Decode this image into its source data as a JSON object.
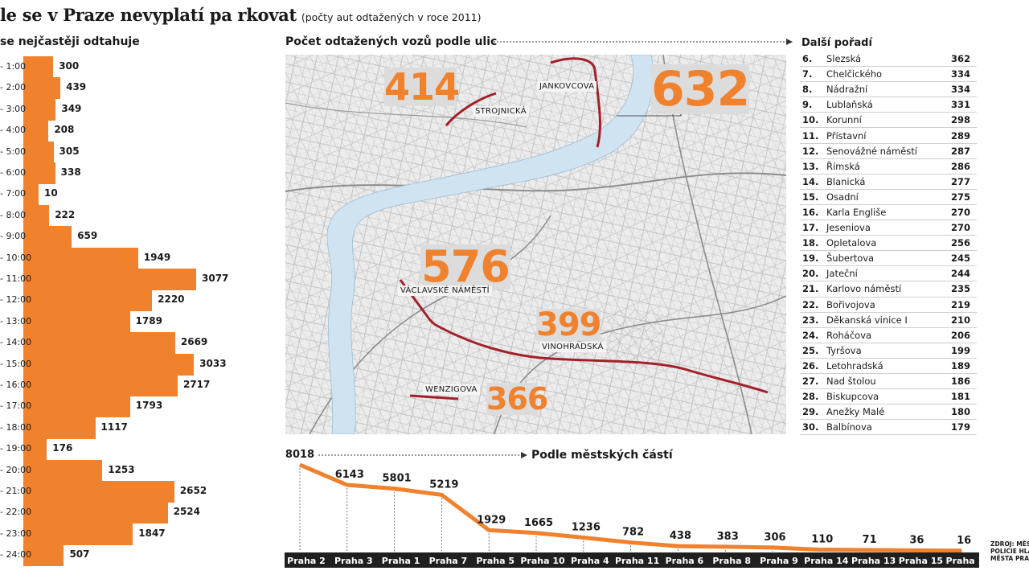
{
  "title": "le se v Praze nevyplatí pa rkovat",
  "subtitle": "(počty aut odtažených v roce 2011)",
  "hours_heading": "se nejčastěji odtahuje",
  "map_heading": "Počet odtažených vozů podle ulic",
  "rank_heading": "Další pořadí",
  "district_heading": "Podle městských částí",
  "source": [
    "ZDROJ: MĚST",
    "POLICIE HLA",
    "MĚSTA PRAH"
  ],
  "colors": {
    "accent": "#f0812d",
    "dark": "#1f1f1f",
    "street": "#a3202a",
    "river": "#cfe3f1"
  },
  "map_labels": [
    {
      "value": "414",
      "street": "STROJNICKÁ"
    },
    {
      "value": "632",
      "street": "JANKOVCOVA"
    },
    {
      "value": "576",
      "street": "VÁCLAVSKÉ NÁMĚSTÍ"
    },
    {
      "value": "399",
      "street": "VINOHRADSKÁ"
    },
    {
      "value": "366",
      "street": "WENZIGOVA"
    }
  ],
  "rankings": [
    {
      "rank": "6.",
      "street": "Slezská",
      "count": "362"
    },
    {
      "rank": "7.",
      "street": "Chelčického",
      "count": "334"
    },
    {
      "rank": "8.",
      "street": "Nádražní",
      "count": "334"
    },
    {
      "rank": "9.",
      "street": "Lublaňská",
      "count": "331"
    },
    {
      "rank": "10.",
      "street": "Korunní",
      "count": "298"
    },
    {
      "rank": "11.",
      "street": "Přístavní",
      "count": "289"
    },
    {
      "rank": "12.",
      "street": "Senovážné náměstí",
      "count": "287"
    },
    {
      "rank": "13.",
      "street": "Římská",
      "count": "286"
    },
    {
      "rank": "14.",
      "street": "Blanická",
      "count": "277"
    },
    {
      "rank": "15.",
      "street": "Osadní",
      "count": "275"
    },
    {
      "rank": "16.",
      "street": "Karla Engliše",
      "count": "270"
    },
    {
      "rank": "17.",
      "street": "Jeseniova",
      "count": "270"
    },
    {
      "rank": "18.",
      "street": "Opletalova",
      "count": "256"
    },
    {
      "rank": "19.",
      "street": "Šubertova",
      "count": "245"
    },
    {
      "rank": "20.",
      "street": "Jateční",
      "count": "244"
    },
    {
      "rank": "21.",
      "street": "Karlovo náměstí",
      "count": "235"
    },
    {
      "rank": "22.",
      "street": "Bořivojova",
      "count": "219"
    },
    {
      "rank": "23.",
      "street": "Děkanská vinice I",
      "count": "210"
    },
    {
      "rank": "24.",
      "street": "Roháčova",
      "count": "206"
    },
    {
      "rank": "25.",
      "street": "Tyršova",
      "count": "199"
    },
    {
      "rank": "26.",
      "street": "Letohradská",
      "count": "189"
    },
    {
      "rank": "27.",
      "street": "Nad štolou",
      "count": "186"
    },
    {
      "rank": "28.",
      "street": "Biskupcova",
      "count": "181"
    },
    {
      "rank": "29.",
      "street": "Anežky Malé",
      "count": "180"
    },
    {
      "rank": "30.",
      "street": "Balbínova",
      "count": "179"
    }
  ],
  "chart_data": [
    {
      "type": "bar",
      "orientation": "horizontal",
      "categories": [
        "- 1:00",
        "- 2:00",
        "- 3:00",
        "- 4:00",
        "- 5:00",
        "- 6:00",
        "- 7:00",
        "- 8:00",
        "- 9:00",
        "- 10:00",
        "- 11:00",
        "- 12:00",
        "- 13:00",
        "- 14:00",
        "- 15:00",
        "- 16:00",
        "- 17:00",
        "- 18:00",
        "- 19:00",
        "- 20:00",
        "- 21:00",
        "- 22:00",
        "- 23:00",
        "- 24:00"
      ],
      "values": [
        300,
        439,
        349,
        208,
        305,
        338,
        10,
        222,
        659,
        1949,
        3077,
        2220,
        1789,
        2669,
        3033,
        2717,
        1793,
        1117,
        176,
        1253,
        2652,
        2524,
        1847,
        507
      ],
      "title": "se nejčastěji odtahuje"
    },
    {
      "type": "line",
      "categories": [
        "Praha 2",
        "Praha 3",
        "Praha 1",
        "Praha 7",
        "Praha 5",
        "Praha 10",
        "Praha 4",
        "Praha 11",
        "Praha 6",
        "Praha 8",
        "Praha 9",
        "Praha 14",
        "Praha 13",
        "Praha 15",
        "Praha 12"
      ],
      "values": [
        8018,
        6143,
        5801,
        5219,
        1929,
        1665,
        1236,
        782,
        438,
        383,
        306,
        110,
        71,
        36,
        16
      ],
      "title": "Podle městských částí"
    }
  ]
}
